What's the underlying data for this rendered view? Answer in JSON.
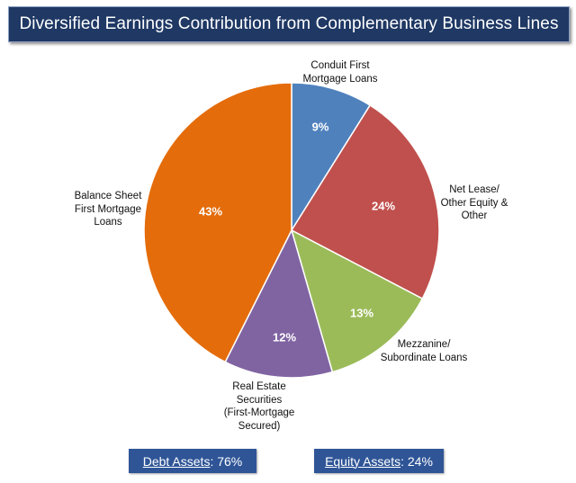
{
  "title": "Diversified Earnings Contribution from Complementary Business Lines",
  "chart_data": {
    "type": "pie",
    "slices": [
      {
        "name": "Conduit First Mortgage Loans",
        "label_lines": [
          "Conduit First",
          "Mortgage Loans"
        ],
        "value": 9,
        "display": "9%",
        "color": "#4f81bd"
      },
      {
        "name": "Net Lease/ Other Equity & Other",
        "label_lines": [
          "Net Lease/",
          "Other Equity &",
          "Other"
        ],
        "value": 24,
        "display": "24%",
        "color": "#c0504d"
      },
      {
        "name": "Mezzanine/ Subordinate Loans",
        "label_lines": [
          "Mezzanine/",
          "Subordinate Loans"
        ],
        "value": 13,
        "display": "13%",
        "color": "#9bbb59"
      },
      {
        "name": "Real Estate Securities (First-Mortgage Secured)",
        "label_lines": [
          "Real Estate",
          "Securities",
          "(First-Mortgage",
          "Secured)"
        ],
        "value": 12,
        "display": "12%",
        "color": "#8064a2"
      },
      {
        "name": "Balance Sheet First Mortgage Loans",
        "label_lines": [
          "Balance Sheet",
          "First Mortgage",
          "Loans"
        ],
        "value": 43,
        "display": "43%",
        "color": "#e46c0a"
      }
    ]
  },
  "summary": {
    "debt": {
      "label": "Debt Assets",
      "value": ": 76%"
    },
    "equity": {
      "label": "Equity Assets",
      "value": ": 24%"
    }
  }
}
